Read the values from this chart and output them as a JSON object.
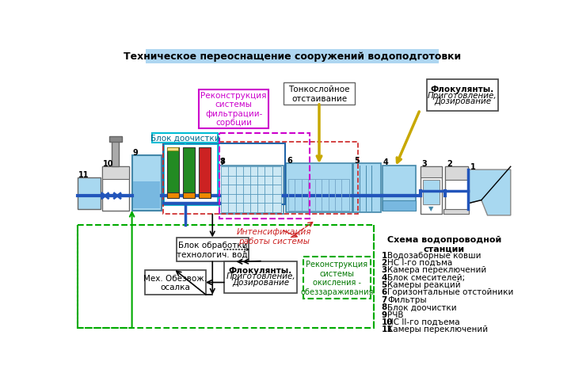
{
  "title": "Техническое переоснащение сооружений водоподготовки",
  "title_bg": "#aed6f1",
  "legend_title": "Схема водопроводной\nстанции",
  "legend_items": [
    [
      "1",
      "Водозаборные ковши"
    ],
    [
      "2",
      "НС I-го подъма"
    ],
    [
      "3",
      "Камера переключений"
    ],
    [
      "4",
      "Блок смесителей;"
    ],
    [
      "5",
      "Камеры реакций"
    ],
    [
      "6",
      "Горизонтальные отстойники"
    ],
    [
      "7",
      "Фильтры"
    ],
    [
      "8",
      "Блок доочистки"
    ],
    [
      "9",
      "РЧВ"
    ],
    [
      "10",
      "НС II-го подъема"
    ],
    [
      "11",
      "Камеры переключений"
    ]
  ],
  "water_light": "#a8d8f0",
  "water_mid": "#78b8e0",
  "water_dark": "#4898c8",
  "water_blue": "#5ba8d8",
  "cyan_color": "#00bcd4",
  "green_color": "#00aa00",
  "magenta_color": "#cc00cc",
  "red_color": "#cc2222",
  "dark_blue": "#1040a0",
  "orange_color": "#ee8800",
  "yellow_color": "#e8c000",
  "gray_light": "#d8d8d8",
  "gray_mid": "#a0a0a0",
  "bg": "#ffffff",
  "pipe_blue": "#2255bb"
}
